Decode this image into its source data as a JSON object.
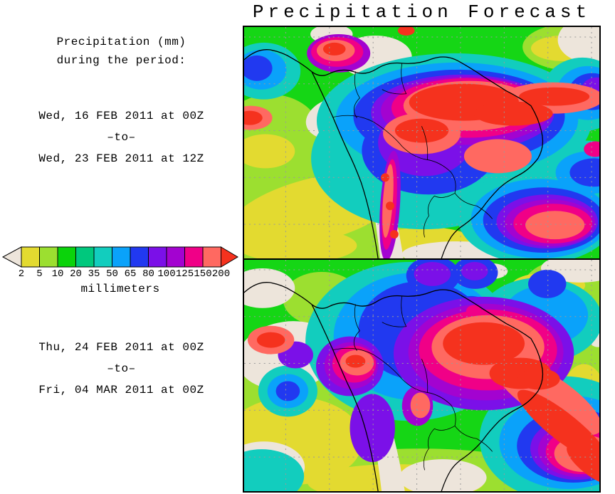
{
  "title": "Precipitation Forecast",
  "sidebar": {
    "heading": [
      "Precipitation (mm)",
      "during the period:"
    ],
    "periods": [
      {
        "start": "Wed, 16 FEB 2011 at 00Z",
        "separator": "–to–",
        "end": "Wed, 23 FEB 2011 at 12Z"
      },
      {
        "start": "Thu, 24 FEB 2011 at 00Z",
        "separator": "–to–",
        "end": "Fri, 04 MAR 2011 at 00Z"
      }
    ]
  },
  "colorbar": {
    "tick_labels": [
      "2",
      "5",
      "10",
      "20",
      "35",
      "50",
      "65",
      "80",
      "100",
      "125",
      "150",
      "200"
    ],
    "segment_colors": [
      "#E3DA30",
      "#9CDF30",
      "#0BD30B",
      "#00C87D",
      "#12CDBE",
      "#0AA2FA",
      "#2139F0",
      "#7B10E8",
      "#A303D0",
      "#F00087",
      "#FF6961"
    ],
    "below_min_color": "#EDE5DB",
    "above_max_color": "#F5321E",
    "units_label": "millimeters"
  },
  "chart_data": {
    "type": "heatmap",
    "title": "Precipitation Forecast",
    "quantity": "Precipitation (mm) during the period",
    "units": "millimeters",
    "colorbar_levels_mm": [
      2,
      5,
      10,
      20,
      35,
      50,
      65,
      80,
      100,
      125,
      150,
      200
    ],
    "colorbar_colors": [
      "#EDE5DB",
      "#E3DA30",
      "#9CDF30",
      "#0BD30B",
      "#00C87D",
      "#12CDBE",
      "#0AA2FA",
      "#2139F0",
      "#7B10E8",
      "#A303D0",
      "#F00087",
      "#FF6961",
      "#F5321E"
    ],
    "legend_position": "left-center",
    "grid": "dashed latitude-longitude graticule",
    "region": "South America and adjacent oceans, coastlines and country borders drawn in black",
    "panels": [
      {
        "position": "top",
        "period_start": "Wed, 16 FEB 2011 at 00Z",
        "period_end": "Wed, 23 FEB 2011 at 12Z",
        "summary": "Very heavy precipitation (125-200+ mm, magenta/red) over the Amazon basin and central Brazil extending east over the Atlantic; dry (under 2 mm, beige) along the Peru-Chile coast, southeast Pacific, Caribbean and southern Argentina; light-moderate (2-35 mm, yellow-green) elsewhere"
      },
      {
        "position": "bottom",
        "period_start": "Thu, 24 FEB 2011 at 00Z",
        "period_end": "Fri, 04 MAR 2011 at 00Z",
        "summary": "Heavy precipitation cores (150-200+ mm, red) over central Brazil and a long red/magenta band stretching from southeast Brazil into the South Atlantic; 35-80 mm (teal/blue) over the northwest Amazon; dry (beige) eastern Pacific, west coast and Argentina"
      }
    ]
  }
}
